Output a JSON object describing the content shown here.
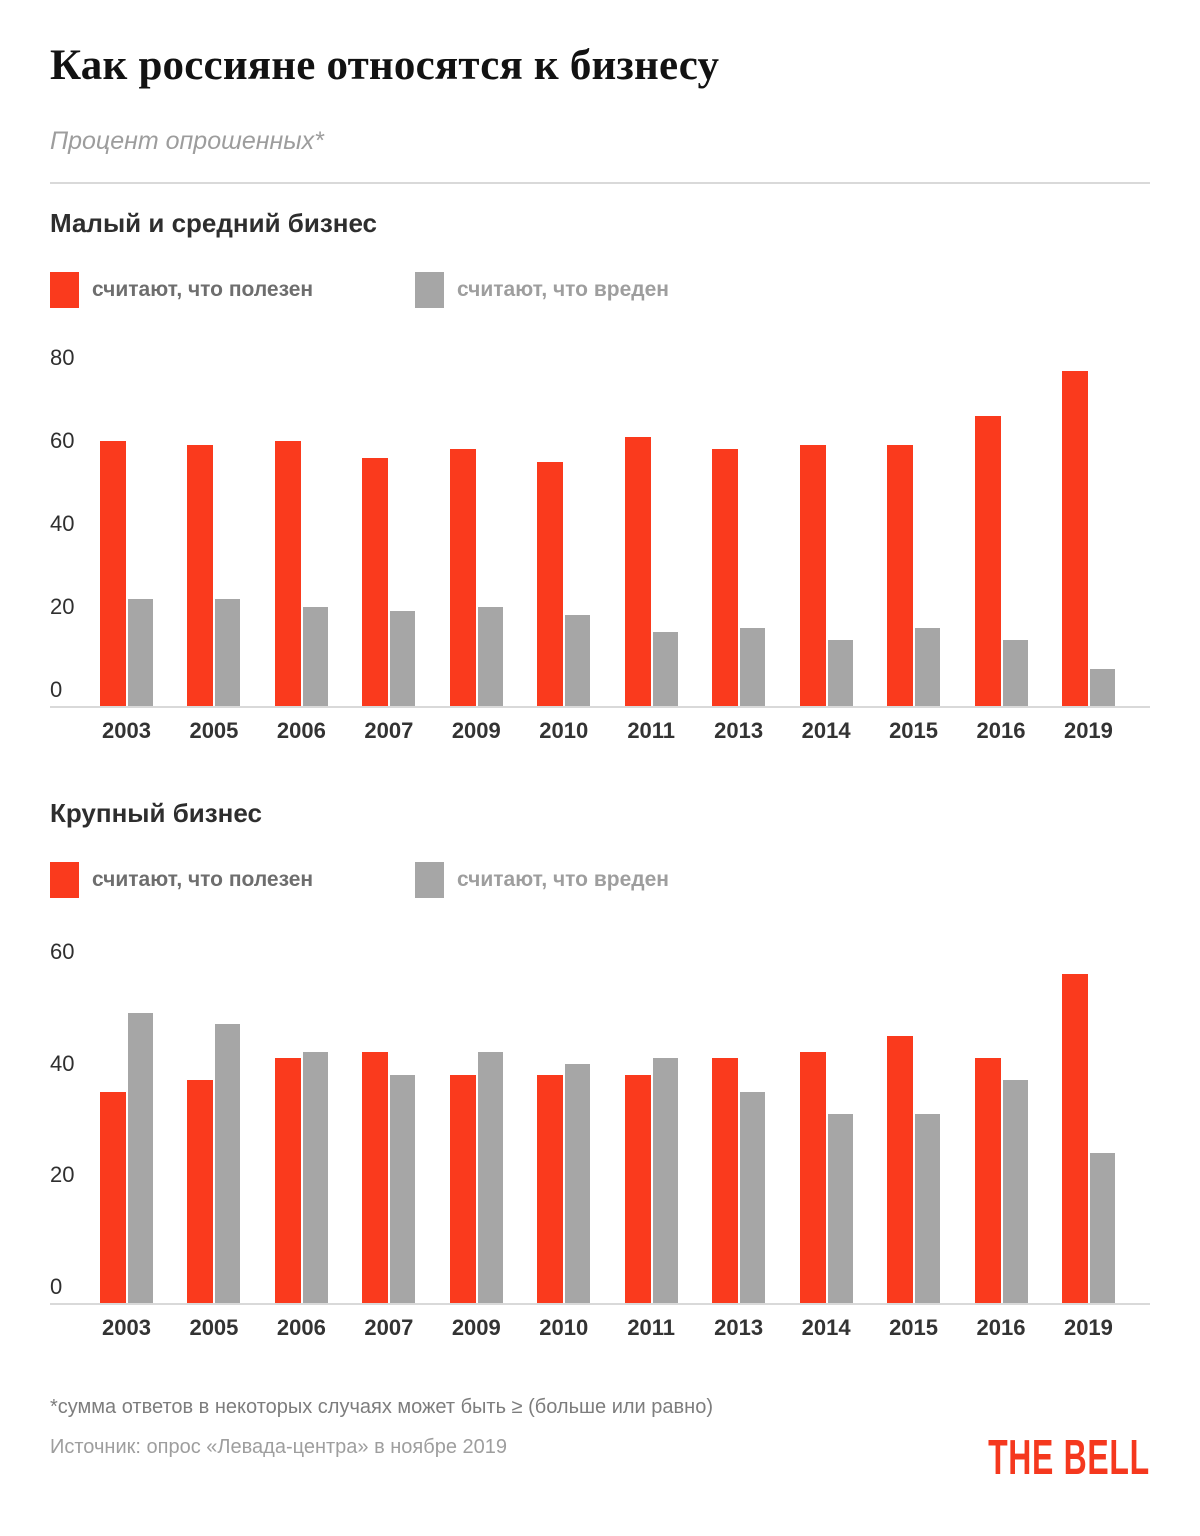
{
  "header": {
    "title": "Как россияне относятся к бизнесу",
    "subtitle": "Процент опрошенных*"
  },
  "legend": {
    "useful_label": "считают, что полезен",
    "harmful_label": "считают, что вреден"
  },
  "colors": {
    "useful": "#FA3A1D",
    "harmful": "#A6A6A6",
    "logo": "#F5381E",
    "axis": "#D9D9D9"
  },
  "footer": {
    "footnote": "*сумма ответов в некоторых случаях может быть ≥ (больше или равно)",
    "source": "Источник: опрос «Левада-центра» в ноябре 2019",
    "logo_text": "THE BELL"
  },
  "chart_data": [
    {
      "type": "bar",
      "title": "Малый и средний бизнес",
      "categories": [
        "2003",
        "2005",
        "2006",
        "2007",
        "2009",
        "2010",
        "2011",
        "2013",
        "2014",
        "2015",
        "2016",
        "2019"
      ],
      "series": [
        {
          "name": "считают, что полезен",
          "color": "#FA3A1D",
          "values": [
            60,
            59,
            60,
            56,
            58,
            55,
            61,
            58,
            59,
            59,
            66,
            77
          ]
        },
        {
          "name": "считают, что вреден",
          "color": "#A6A6A6",
          "values": [
            22,
            22,
            20,
            19,
            20,
            18,
            14,
            15,
            12,
            15,
            12,
            5
          ]
        }
      ],
      "xlabel": "",
      "ylabel": "",
      "unit": "percent",
      "yticks": [
        0,
        20,
        40,
        60,
        80
      ],
      "ylim": [
        0,
        80
      ],
      "grid": false,
      "legend_position": "top"
    },
    {
      "type": "bar",
      "title": "Крупный бизнес",
      "categories": [
        "2003",
        "2005",
        "2006",
        "2007",
        "2009",
        "2010",
        "2011",
        "2013",
        "2014",
        "2015",
        "2016",
        "2019"
      ],
      "series": [
        {
          "name": "считают, что полезен",
          "color": "#FA3A1D",
          "values": [
            35,
            37,
            41,
            42,
            38,
            38,
            38,
            41,
            42,
            45,
            41,
            56
          ]
        },
        {
          "name": "считают, что вреден",
          "color": "#A6A6A6",
          "values": [
            49,
            47,
            42,
            38,
            42,
            40,
            41,
            35,
            31,
            31,
            37,
            24
          ]
        }
      ],
      "xlabel": "",
      "ylabel": "",
      "unit": "percent",
      "yticks": [
        0,
        20,
        40,
        60
      ],
      "ylim": [
        0,
        60
      ],
      "grid": false,
      "legend_position": "top"
    }
  ]
}
